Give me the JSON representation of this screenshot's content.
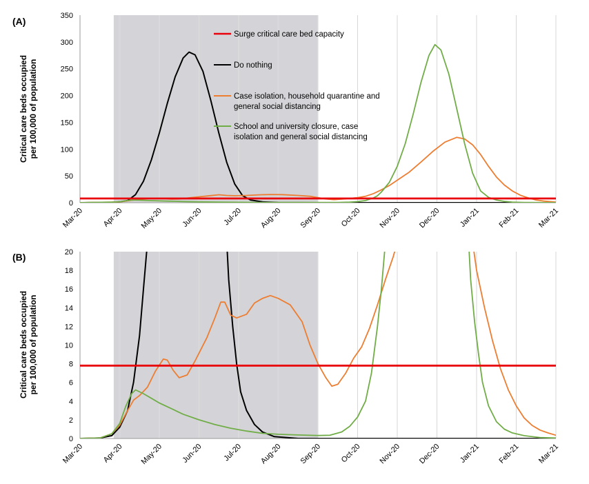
{
  "chart_data": [
    {
      "type": "line",
      "panel_label": "(A)",
      "ylabel_line1": "Critical care beds occupied",
      "ylabel_line2": "per 100,000 of population",
      "ylim": [
        0,
        350
      ],
      "yticks": [
        0,
        50,
        100,
        150,
        200,
        250,
        300,
        350
      ],
      "x_tick_labels": [
        "Mar-20",
        "Apr-20",
        "May-20",
        "Jun-20",
        "Jul-20",
        "Aug-20",
        "Sep-20",
        "Oct-20",
        "Nov-20",
        "Dec-20",
        "Jan-21",
        "Feb-21",
        "Mar-21"
      ],
      "xlim_months": [
        0,
        12
      ],
      "shaded_region_months": [
        0.85,
        6.0
      ],
      "legend_placement": "top-center, inside plot",
      "series": [
        {
          "name": "Surge critical care bed capacity",
          "color": "#e8000b",
          "points": [
            [
              0,
              7.8
            ],
            [
              12,
              7.8
            ]
          ]
        },
        {
          "name": "Do nothing",
          "color": "#000000",
          "points": [
            [
              0,
              0
            ],
            [
              0.8,
              0.5
            ],
            [
              1.0,
              1.5
            ],
            [
              1.2,
              4
            ],
            [
              1.4,
              15
            ],
            [
              1.6,
              40
            ],
            [
              1.8,
              80
            ],
            [
              2.0,
              130
            ],
            [
              2.2,
              185
            ],
            [
              2.4,
              235
            ],
            [
              2.6,
              270
            ],
            [
              2.75,
              281
            ],
            [
              2.9,
              276
            ],
            [
              3.1,
              245
            ],
            [
              3.3,
              190
            ],
            [
              3.5,
              130
            ],
            [
              3.7,
              75
            ],
            [
              3.9,
              35
            ],
            [
              4.1,
              13
            ],
            [
              4.3,
              5
            ],
            [
              4.6,
              1.5
            ],
            [
              5.0,
              0.3
            ],
            [
              6,
              0
            ],
            [
              12,
              0
            ]
          ]
        },
        {
          "name": "Case isolation, household quarantine and general social distancing",
          "color": "#ed7d31",
          "points": [
            [
              0,
              0
            ],
            [
              0.8,
              1
            ],
            [
              1.0,
              1.5
            ],
            [
              1.3,
              4.5
            ],
            [
              1.7,
              7.5
            ],
            [
              1.9,
              8.5
            ],
            [
              2.1,
              7.8
            ],
            [
              2.3,
              6.5
            ],
            [
              2.5,
              7
            ],
            [
              2.8,
              9.5
            ],
            [
              3.2,
              12.5
            ],
            [
              3.5,
              14.8
            ],
            [
              3.7,
              13.5
            ],
            [
              3.9,
              13
            ],
            [
              4.2,
              13.5
            ],
            [
              4.5,
              14.7
            ],
            [
              4.8,
              15.3
            ],
            [
              5.1,
              15
            ],
            [
              5.5,
              13.5
            ],
            [
              5.8,
              12
            ],
            [
              6.0,
              9.5
            ],
            [
              6.2,
              7
            ],
            [
              6.4,
              5.6
            ],
            [
              6.6,
              6.5
            ],
            [
              6.8,
              8
            ],
            [
              7.0,
              9.5
            ],
            [
              7.2,
              12
            ],
            [
              7.4,
              17
            ],
            [
              7.6,
              24
            ],
            [
              7.8,
              32
            ],
            [
              8.0,
              42
            ],
            [
              8.3,
              57
            ],
            [
              8.6,
              76
            ],
            [
              8.9,
              96
            ],
            [
              9.2,
              113
            ],
            [
              9.5,
              122
            ],
            [
              9.7,
              119
            ],
            [
              9.9,
              108
            ],
            [
              10.1,
              90
            ],
            [
              10.3,
              68
            ],
            [
              10.5,
              48
            ],
            [
              10.7,
              33
            ],
            [
              10.9,
              22
            ],
            [
              11.1,
              14
            ],
            [
              11.3,
              9
            ],
            [
              11.5,
              5
            ],
            [
              11.7,
              3
            ],
            [
              12.0,
              1
            ]
          ]
        },
        {
          "name": "School and university closure, case isolation and general social distancing",
          "color": "#70ad47",
          "points": [
            [
              0,
              0
            ],
            [
              0.8,
              1
            ],
            [
              1.0,
              1.8
            ],
            [
              1.2,
              4
            ],
            [
              1.3,
              5
            ],
            [
              1.5,
              4.6
            ],
            [
              1.8,
              3.8
            ],
            [
              2.2,
              3
            ],
            [
              2.6,
              2.2
            ],
            [
              3.0,
              1.6
            ],
            [
              3.5,
              1.1
            ],
            [
              4.0,
              0.8
            ],
            [
              4.5,
              0.55
            ],
            [
              5.0,
              0.45
            ],
            [
              5.5,
              0.4
            ],
            [
              6.0,
              0.35
            ],
            [
              6.5,
              0.5
            ],
            [
              6.8,
              1
            ],
            [
              7.0,
              2
            ],
            [
              7.2,
              4
            ],
            [
              7.4,
              9
            ],
            [
              7.5,
              13
            ],
            [
              7.6,
              20
            ],
            [
              7.8,
              38
            ],
            [
              8.0,
              68
            ],
            [
              8.2,
              110
            ],
            [
              8.4,
              165
            ],
            [
              8.6,
              225
            ],
            [
              8.8,
              275
            ],
            [
              8.95,
              295
            ],
            [
              9.1,
              285
            ],
            [
              9.3,
              240
            ],
            [
              9.5,
              175
            ],
            [
              9.7,
              110
            ],
            [
              9.9,
              55
            ],
            [
              10.1,
              22
            ],
            [
              10.3,
              10
            ],
            [
              10.5,
              5
            ],
            [
              10.7,
              2.5
            ],
            [
              10.9,
              1.2
            ],
            [
              11.2,
              0.5
            ],
            [
              11.6,
              0.2
            ],
            [
              12.0,
              0.1
            ]
          ]
        }
      ]
    },
    {
      "type": "line",
      "panel_label": "(B)",
      "ylabel_line1": "Critical care beds occupied",
      "ylabel_line2": "per 100,000 of population",
      "ylim": [
        0,
        20
      ],
      "yticks": [
        0,
        2,
        4,
        6,
        8,
        10,
        12,
        14,
        16,
        18,
        20
      ],
      "x_tick_labels": [
        "Mar-20",
        "Apr-20",
        "May-20",
        "Jun-20",
        "Jul-20",
        "Aug-20",
        "Sep-20",
        "Oct-20",
        "Nov-20",
        "Dec-20",
        "Jan-21",
        "Feb-21",
        "Mar-21"
      ],
      "xlim_months": [
        0,
        12
      ],
      "shaded_region_months": [
        0.85,
        6.0
      ],
      "series": [
        {
          "name": "Surge critical care bed capacity",
          "color": "#e8000b",
          "points": [
            [
              0,
              7.8
            ],
            [
              12,
              7.8
            ]
          ]
        },
        {
          "name": "Do nothing",
          "color": "#000000",
          "points": [
            [
              0,
              0
            ],
            [
              0.5,
              0.05
            ],
            [
              0.8,
              0.3
            ],
            [
              1.0,
              1.2
            ],
            [
              1.2,
              3
            ],
            [
              1.35,
              6
            ],
            [
              1.5,
              11
            ],
            [
              1.6,
              16
            ],
            [
              1.7,
              21
            ],
            [
              3.7,
              21
            ],
            [
              3.75,
              17
            ],
            [
              3.85,
              12
            ],
            [
              3.95,
              8
            ],
            [
              4.05,
              5
            ],
            [
              4.2,
              3
            ],
            [
              4.4,
              1.5
            ],
            [
              4.6,
              0.7
            ],
            [
              4.9,
              0.2
            ],
            [
              5.5,
              0
            ],
            [
              12,
              0
            ]
          ]
        },
        {
          "name": "Case isolation, household quarantine and general social distancing",
          "color": "#ed7d31",
          "points": [
            [
              0,
              0
            ],
            [
              0.5,
              0.05
            ],
            [
              0.8,
              0.5
            ],
            [
              1.0,
              1.4
            ],
            [
              1.2,
              3
            ],
            [
              1.35,
              4.1
            ],
            [
              1.5,
              4.6
            ],
            [
              1.7,
              5.5
            ],
            [
              1.9,
              7.2
            ],
            [
              2.1,
              8.5
            ],
            [
              2.2,
              8.4
            ],
            [
              2.35,
              7.3
            ],
            [
              2.5,
              6.5
            ],
            [
              2.7,
              6.8
            ],
            [
              2.9,
              8.3
            ],
            [
              3.2,
              10.8
            ],
            [
              3.4,
              12.9
            ],
            [
              3.55,
              14.6
            ],
            [
              3.65,
              14.6
            ],
            [
              3.8,
              13.2
            ],
            [
              3.95,
              12.9
            ],
            [
              4.2,
              13.3
            ],
            [
              4.4,
              14.5
            ],
            [
              4.6,
              15
            ],
            [
              4.8,
              15.3
            ],
            [
              5.0,
              15
            ],
            [
              5.3,
              14.3
            ],
            [
              5.6,
              12.5
            ],
            [
              5.8,
              10
            ],
            [
              6.0,
              8
            ],
            [
              6.2,
              6.5
            ],
            [
              6.35,
              5.6
            ],
            [
              6.5,
              5.8
            ],
            [
              6.7,
              7
            ],
            [
              6.9,
              8.6
            ],
            [
              7.1,
              9.8
            ],
            [
              7.3,
              11.8
            ],
            [
              7.5,
              14.3
            ],
            [
              7.7,
              17
            ],
            [
              7.9,
              19.5
            ],
            [
              8.0,
              21
            ],
            [
              9.9,
              21
            ],
            [
              10.0,
              18
            ],
            [
              10.2,
              14
            ],
            [
              10.4,
              10.5
            ],
            [
              10.6,
              7.5
            ],
            [
              10.8,
              5.2
            ],
            [
              11.0,
              3.5
            ],
            [
              11.2,
              2.2
            ],
            [
              11.4,
              1.4
            ],
            [
              11.6,
              0.9
            ],
            [
              11.8,
              0.6
            ],
            [
              12.0,
              0.35
            ]
          ]
        },
        {
          "name": "School and university closure, case isolation and general social distancing",
          "color": "#70ad47",
          "points": [
            [
              0,
              0
            ],
            [
              0.5,
              0.05
            ],
            [
              0.8,
              0.5
            ],
            [
              1.0,
              1.6
            ],
            [
              1.15,
              3.4
            ],
            [
              1.3,
              4.8
            ],
            [
              1.4,
              5.2
            ],
            [
              1.6,
              4.8
            ],
            [
              1.8,
              4.3
            ],
            [
              2.0,
              3.8
            ],
            [
              2.3,
              3.2
            ],
            [
              2.6,
              2.6
            ],
            [
              3.0,
              2
            ],
            [
              3.4,
              1.5
            ],
            [
              3.8,
              1.1
            ],
            [
              4.2,
              0.8
            ],
            [
              4.6,
              0.55
            ],
            [
              5.0,
              0.45
            ],
            [
              5.5,
              0.38
            ],
            [
              6.0,
              0.32
            ],
            [
              6.3,
              0.35
            ],
            [
              6.6,
              0.7
            ],
            [
              6.8,
              1.3
            ],
            [
              7.0,
              2.3
            ],
            [
              7.2,
              4
            ],
            [
              7.35,
              7
            ],
            [
              7.5,
              12
            ],
            [
              7.6,
              16
            ],
            [
              7.7,
              21
            ],
            [
              9.8,
              21
            ],
            [
              9.85,
              17
            ],
            [
              9.95,
              12.5
            ],
            [
              10.05,
              9
            ],
            [
              10.15,
              6
            ],
            [
              10.3,
              3.5
            ],
            [
              10.5,
              1.8
            ],
            [
              10.7,
              1
            ],
            [
              10.9,
              0.6
            ],
            [
              11.2,
              0.3
            ],
            [
              11.6,
              0.1
            ],
            [
              12.0,
              0.05
            ]
          ]
        }
      ]
    }
  ]
}
